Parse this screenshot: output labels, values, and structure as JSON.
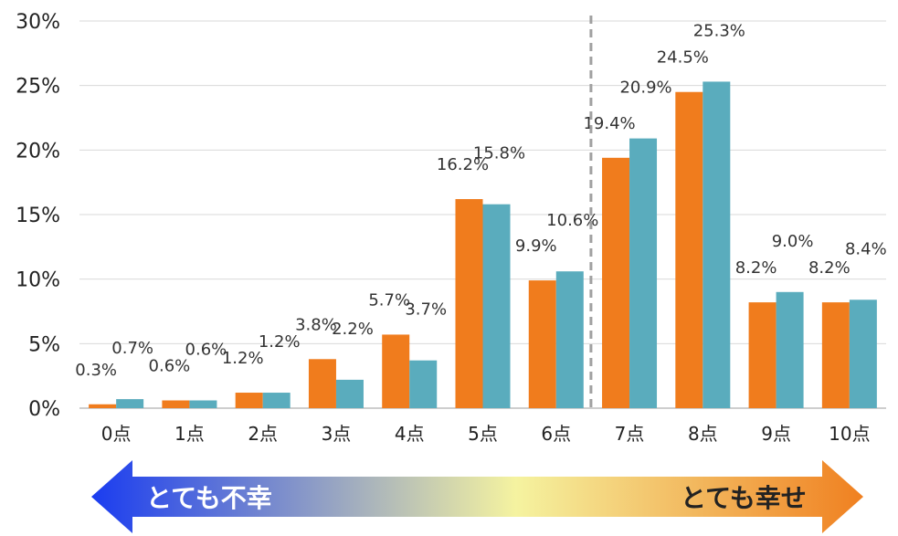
{
  "chart_data": {
    "type": "bar",
    "categories": [
      "0点",
      "1点",
      "2点",
      "3点",
      "4点",
      "5点",
      "6点",
      "7点",
      "8点",
      "9点",
      "10点"
    ],
    "series": [
      {
        "color": "#f07c1d",
        "values": [
          0.3,
          0.6,
          1.2,
          3.8,
          5.7,
          16.2,
          9.9,
          19.4,
          24.5,
          8.2,
          8.2
        ]
      },
      {
        "color": "#5aacbd",
        "values": [
          0.7,
          0.6,
          1.2,
          2.2,
          3.7,
          15.8,
          10.6,
          20.9,
          25.3,
          9.0,
          8.4
        ]
      }
    ],
    "data_labels": [
      [
        "0.3%",
        "0.6%",
        "1.2%",
        "3.8%",
        "5.7%",
        "16.2%",
        "9.9%",
        "19.4%",
        "24.5%",
        "8.2%",
        "8.2%"
      ],
      [
        "0.7%",
        "0.6%",
        "1.2%",
        "2.2%",
        "3.7%",
        "15.8%",
        "10.6%",
        "20.9%",
        "25.3%",
        "9.0%",
        "8.4%"
      ]
    ],
    "yticks": [
      "0%",
      "5%",
      "10%",
      "15%",
      "20%",
      "25%",
      "30%"
    ],
    "ylim": [
      0,
      30
    ],
    "grid": true,
    "divider_after_category": "6点",
    "title": "",
    "xlabel": "",
    "ylabel": ""
  },
  "scale_arrow": {
    "left_label": "とても不幸",
    "right_label": "とても幸せ",
    "colors": [
      "#1a3cf0",
      "#f5f3a0",
      "#f08020"
    ]
  }
}
